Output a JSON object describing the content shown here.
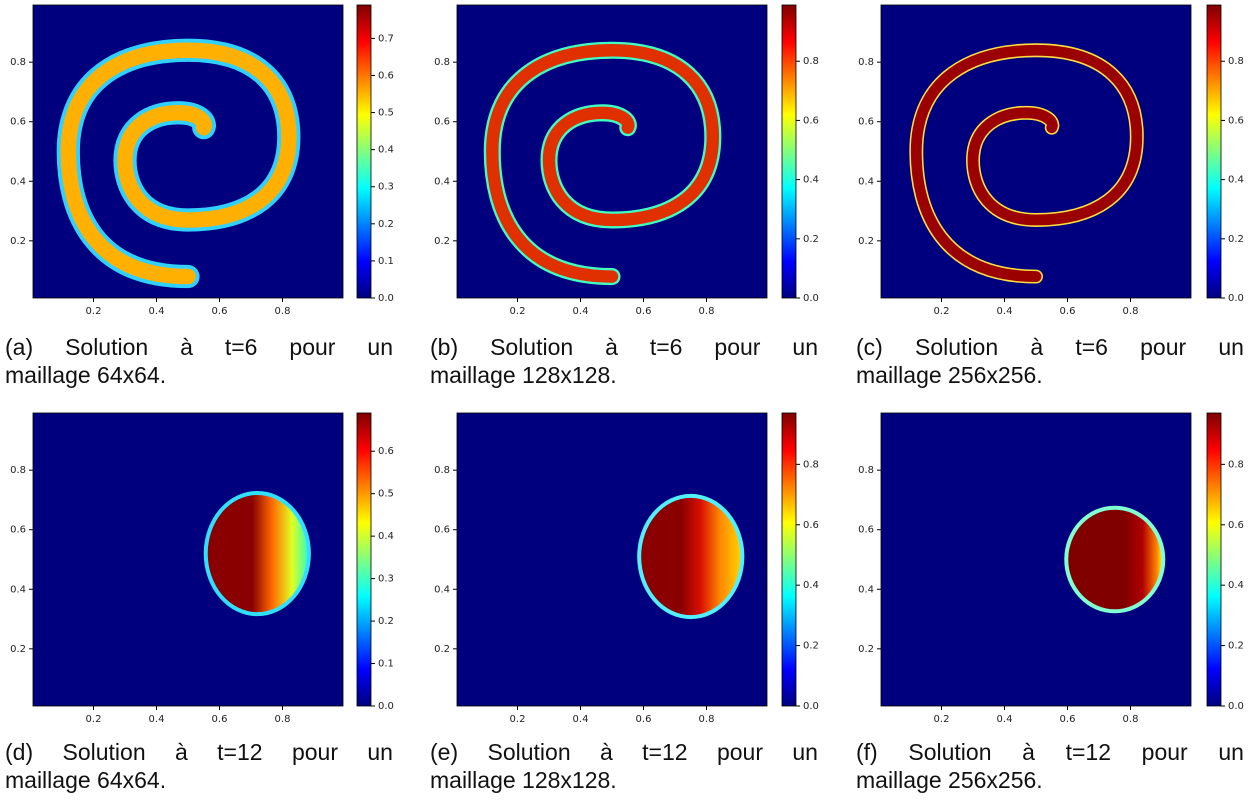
{
  "panels": [
    {
      "label": "(a)",
      "caption_line1": "Solution à t=6 pour un",
      "caption_line2": "maillage 64x64.",
      "xlim": [
        0.008,
        0.992
      ],
      "ylim": [
        0.008,
        0.992
      ],
      "xticks": [
        0.2,
        0.4,
        0.6,
        0.8
      ],
      "yticks": [
        0.2,
        0.4,
        0.6,
        0.8
      ],
      "colorbar": {
        "lim": [
          0,
          0.79
        ],
        "ticks": [
          {
            "value": 0,
            "label": "0.0"
          },
          0.1,
          0.2,
          0.3,
          0.4,
          0.5,
          0.6,
          0.7
        ]
      }
    },
    {
      "label": "(b)",
      "caption_line1": "Solution à t=6 pour un",
      "caption_line2": "maillage 128x128.",
      "xlim": [
        0.008,
        0.992
      ],
      "ylim": [
        0.008,
        0.992
      ],
      "xticks": [
        0.2,
        0.4,
        0.6,
        0.8
      ],
      "yticks": [
        0.2,
        0.4,
        0.6,
        0.8
      ],
      "colorbar": {
        "lim": [
          0,
          0.99
        ],
        "ticks": [
          {
            "value": 0,
            "label": "0.0"
          },
          0.2,
          0.4,
          0.6,
          0.8
        ]
      }
    },
    {
      "label": "(c)",
      "caption_line1": "Solution à t=6 pour un",
      "caption_line2": "maillage 256x256.",
      "xlim": [
        0.008,
        0.992
      ],
      "ylim": [
        0.008,
        0.992
      ],
      "xticks": [
        0.2,
        0.4,
        0.6,
        0.8
      ],
      "yticks": [
        0.2,
        0.4,
        0.6,
        0.8
      ],
      "colorbar": {
        "lim": [
          0,
          0.99
        ],
        "ticks": [
          {
            "value": 0,
            "label": "0.0"
          },
          0.2,
          0.4,
          0.6,
          0.8
        ]
      }
    },
    {
      "label": "(d)",
      "caption_line1": "Solution à t=12 pour un",
      "caption_line2": "maillage 64x64.",
      "xlim": [
        0.008,
        0.992
      ],
      "ylim": [
        0.008,
        0.992
      ],
      "xticks": [
        0.2,
        0.4,
        0.6,
        0.8
      ],
      "yticks": [
        0.2,
        0.4,
        0.6,
        0.8
      ],
      "colorbar": {
        "lim": [
          0,
          0.69
        ],
        "ticks": [
          {
            "value": 0,
            "label": "0.0"
          },
          0.1,
          0.2,
          0.3,
          0.4,
          0.5,
          0.6
        ]
      }
    },
    {
      "label": "(e)",
      "caption_line1": "Solution à t=12 pour un",
      "caption_line2": "maillage 128x128.",
      "xlim": [
        0.008,
        0.992
      ],
      "ylim": [
        0.008,
        0.992
      ],
      "xticks": [
        0.2,
        0.4,
        0.6,
        0.8
      ],
      "yticks": [
        0.2,
        0.4,
        0.6,
        0.8
      ],
      "colorbar": {
        "lim": [
          0,
          0.97
        ],
        "ticks": [
          {
            "value": 0,
            "label": "0.0"
          },
          0.2,
          0.4,
          0.6,
          0.8
        ]
      }
    },
    {
      "label": "(f)",
      "caption_line1": "Solution à t=12 pour un",
      "caption_line2": "maillage 256x256.",
      "xlim": [
        0.008,
        0.992
      ],
      "ylim": [
        0.008,
        0.992
      ],
      "xticks": [
        0.2,
        0.4,
        0.6,
        0.8
      ],
      "yticks": [
        0.2,
        0.4,
        0.6,
        0.8
      ],
      "colorbar": {
        "lim": [
          0,
          0.97
        ],
        "ticks": [
          {
            "value": 0,
            "label": "0.0"
          },
          0.2,
          0.4,
          0.6,
          0.8
        ]
      }
    }
  ]
}
